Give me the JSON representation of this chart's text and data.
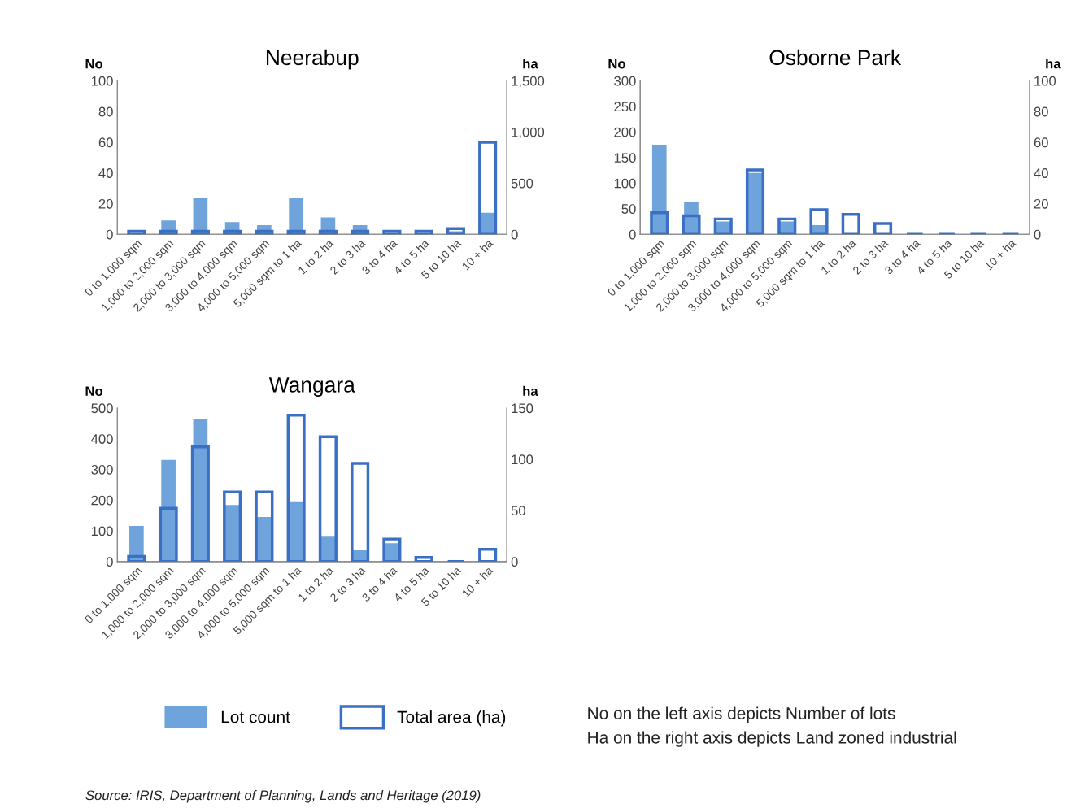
{
  "chart_data": [
    {
      "type": "bar",
      "title": "Neerabup",
      "ylabel": "No",
      "y2label": "ha",
      "categories": [
        "0 to 1,000 sqm",
        "1,000 to 2,000 sqm",
        "2,000 to 3,000 sqm",
        "3,000 to 4,000 sqm",
        "4,000 to 5,000 sqm",
        "5,000 sqm to 1 ha",
        "1 to 2 ha",
        "2 to 3 ha",
        "3 to 4 ha",
        "4 to 5 ha",
        "5 to 10 ha",
        "10 + ha"
      ],
      "series": [
        {
          "name": "Lot count",
          "color": "#6fa3dc",
          "values": [
            null,
            9,
            24,
            8,
            6,
            24,
            11,
            6,
            null,
            null,
            2,
            14
          ]
        },
        {
          "name": "Total area (ha)",
          "color": "#3a6fc4",
          "axis": "y2",
          "values": [
            30,
            30,
            30,
            30,
            30,
            30,
            30,
            30,
            30,
            30,
            55,
            900
          ]
        }
      ],
      "ylim": [
        0,
        100
      ],
      "yticks": [
        0,
        20,
        40,
        60,
        80,
        100
      ],
      "y2lim": [
        0,
        1500
      ],
      "y2ticks": [
        0,
        500,
        {
          "value": 1000,
          "label": "1,000"
        },
        {
          "value": 1500,
          "label": "1,500"
        }
      ],
      "grid": false,
      "legend": "bottom"
    },
    {
      "type": "bar",
      "title": "Osborne Park",
      "ylabel": "No",
      "y2label": "ha",
      "categories": [
        "0 to 1,000 sqm",
        "1,000 to 2,000 sqm",
        "2,000 to 3,000 sqm",
        "3,000 to 4,000 sqm",
        "4,000 to 5,000 sqm",
        "5,000 sqm to 1 ha",
        "1 to 2 ha",
        "2 to 3 ha",
        "3 to 4 ha",
        "4 to 5 ha",
        "5 to 10 ha",
        "10 + ha"
      ],
      "series": [
        {
          "color": "#6fa3dc",
          "values": [
            175,
            64,
            25,
            120,
            25,
            18,
            0,
            0,
            0,
            0,
            0,
            0
          ]
        },
        {
          "color": "#3a6fc4",
          "axis": "y2",
          "values": [
            14,
            12,
            10,
            42,
            10,
            16,
            13,
            7,
            0,
            0,
            0,
            0
          ]
        }
      ],
      "ylim": [
        0,
        300
      ],
      "yticks": [
        0,
        50,
        100,
        150,
        200,
        250,
        300
      ],
      "y2lim": [
        0,
        100
      ],
      "y2ticks": [
        0,
        20,
        40,
        60,
        80,
        100
      ],
      "grid": false
    },
    {
      "type": "bar",
      "title": "Wangara",
      "ylabel": "No",
      "y2label": "ha",
      "categories": [
        "0 to 1,000 sqm",
        "1,000 to 2,000 sqm",
        "2,000 to 3,000 sqm",
        "3,000 to 4,000 sqm",
        "4,000 to 5,000 sqm",
        "5,000 sqm to 1 ha",
        "1 to 2 ha",
        "2 to 3 ha",
        "3 to 4 ha",
        "4 to 5 ha",
        "5 to 10 ha",
        "10 + ha"
      ],
      "series": [
        {
          "color": "#6fa3dc",
          "values": [
            116,
            331,
            463,
            184,
            145,
            196,
            81,
            37,
            60,
            null,
            0,
            0
          ]
        },
        {
          "color": "#3a6fc4",
          "axis": "y2",
          "values": [
            5,
            52,
            112,
            68,
            68,
            143,
            122,
            96,
            22,
            4,
            0,
            12
          ]
        }
      ],
      "ylim": [
        0,
        500
      ],
      "yticks": [
        0,
        100,
        200,
        300,
        400,
        500
      ],
      "y2lim": [
        0,
        150
      ],
      "y2ticks": [
        0,
        50,
        100,
        150
      ],
      "grid": false,
      "annotations": [
        "No on the left axis depicts Number of lots",
        "Ha on the right axis depicts Land zoned industrial",
        "Source: IRIS, Department of Planning, Lands and Heritage (2019)"
      ]
    }
  ]
}
